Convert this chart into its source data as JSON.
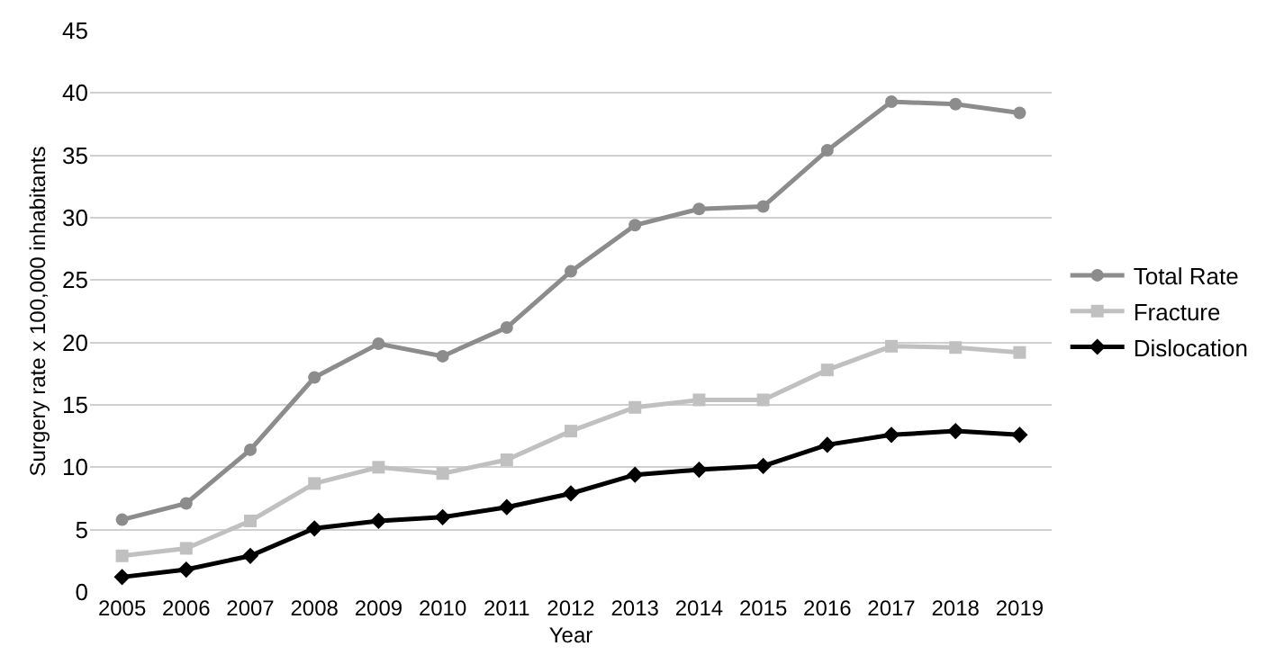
{
  "chart_data": {
    "type": "line",
    "xlabel": "Year",
    "ylabel": "Surgery rate x 100,000 inhabitants",
    "categories": [
      "2005",
      "2006",
      "2007",
      "2008",
      "2009",
      "2010",
      "2011",
      "2012",
      "2013",
      "2014",
      "2015",
      "2016",
      "2017",
      "2018",
      "2019"
    ],
    "series": [
      {
        "name": "Total Rate",
        "color": "#8c8c8c",
        "marker": "circle",
        "values": [
          5.8,
          7.1,
          11.4,
          17.2,
          19.9,
          18.9,
          21.2,
          25.7,
          29.4,
          30.7,
          30.9,
          35.4,
          39.3,
          39.1,
          38.4
        ]
      },
      {
        "name": "Fracture",
        "color": "#c0c0c0",
        "marker": "square",
        "values": [
          2.9,
          3.5,
          5.7,
          8.7,
          10.0,
          9.5,
          10.6,
          12.9,
          14.8,
          15.4,
          15.4,
          17.8,
          19.7,
          19.6,
          19.2
        ]
      },
      {
        "name": "Dislocation",
        "color": "#000000",
        "marker": "diamond",
        "values": [
          1.2,
          1.8,
          2.9,
          5.1,
          5.7,
          6.0,
          6.8,
          7.9,
          9.4,
          9.8,
          10.1,
          11.8,
          12.6,
          12.9,
          12.6
        ]
      }
    ],
    "ylim": [
      0,
      45
    ],
    "yticks": [
      0,
      5,
      10,
      15,
      20,
      25,
      30,
      35,
      40,
      45
    ],
    "grid": "y",
    "legend": "right",
    "line_style": "solid"
  }
}
